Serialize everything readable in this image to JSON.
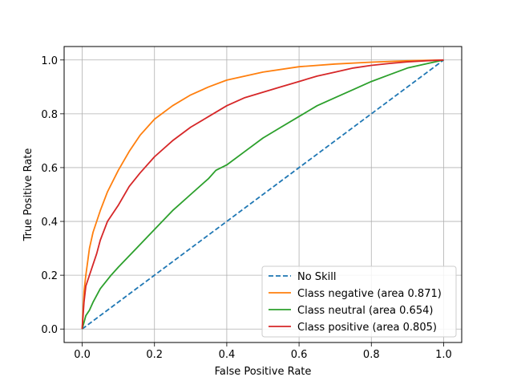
{
  "chart_data": {
    "type": "line",
    "xlabel": "False Positive Rate",
    "ylabel": "True Positive Rate",
    "xlim": [
      -0.05,
      1.05
    ],
    "ylim": [
      -0.05,
      1.05
    ],
    "xticks": [
      0.0,
      0.2,
      0.4,
      0.6,
      0.8,
      1.0
    ],
    "yticks": [
      0.0,
      0.2,
      0.4,
      0.6,
      0.8,
      1.0
    ],
    "xtick_labels": [
      "0.0",
      "0.2",
      "0.4",
      "0.6",
      "0.8",
      "1.0"
    ],
    "ytick_labels": [
      "0.0",
      "0.2",
      "0.4",
      "0.6",
      "0.8",
      "1.0"
    ],
    "grid": true,
    "legend_position": "lower-right",
    "series": [
      {
        "name": "No Skill",
        "color": "#1f77b4",
        "dashed": true,
        "x": [
          0.0,
          1.0
        ],
        "y": [
          0.0,
          1.0
        ]
      },
      {
        "name": "Class negative (area 0.871)",
        "color": "#ff7f0e",
        "dashed": false,
        "x": [
          0.0,
          0.005,
          0.01,
          0.02,
          0.03,
          0.05,
          0.07,
          0.1,
          0.13,
          0.16,
          0.2,
          0.25,
          0.3,
          0.35,
          0.4,
          0.5,
          0.6,
          0.7,
          0.8,
          0.9,
          1.0
        ],
        "y": [
          0.0,
          0.14,
          0.2,
          0.3,
          0.36,
          0.44,
          0.51,
          0.59,
          0.66,
          0.72,
          0.78,
          0.83,
          0.87,
          0.9,
          0.925,
          0.955,
          0.975,
          0.985,
          0.992,
          0.997,
          1.0
        ]
      },
      {
        "name": "Class neutral (area 0.654)",
        "color": "#2ca02c",
        "dashed": false,
        "x": [
          0.0,
          0.01,
          0.02,
          0.03,
          0.05,
          0.08,
          0.1,
          0.15,
          0.2,
          0.25,
          0.3,
          0.35,
          0.37,
          0.4,
          0.45,
          0.5,
          0.55,
          0.6,
          0.65,
          0.7,
          0.75,
          0.8,
          0.85,
          0.9,
          0.95,
          1.0
        ],
        "y": [
          0.0,
          0.05,
          0.07,
          0.1,
          0.15,
          0.2,
          0.23,
          0.3,
          0.37,
          0.44,
          0.5,
          0.56,
          0.59,
          0.61,
          0.66,
          0.71,
          0.75,
          0.79,
          0.83,
          0.86,
          0.89,
          0.92,
          0.945,
          0.97,
          0.985,
          1.0
        ]
      },
      {
        "name": "Class positive (area 0.805)",
        "color": "#d62728",
        "dashed": false,
        "x": [
          0.0,
          0.005,
          0.01,
          0.02,
          0.03,
          0.04,
          0.05,
          0.07,
          0.1,
          0.13,
          0.16,
          0.2,
          0.25,
          0.3,
          0.35,
          0.4,
          0.45,
          0.5,
          0.55,
          0.6,
          0.65,
          0.7,
          0.75,
          0.8,
          0.85,
          0.9,
          0.95,
          1.0
        ],
        "y": [
          0.0,
          0.1,
          0.16,
          0.2,
          0.24,
          0.28,
          0.33,
          0.4,
          0.46,
          0.53,
          0.58,
          0.64,
          0.7,
          0.75,
          0.79,
          0.83,
          0.86,
          0.88,
          0.9,
          0.92,
          0.94,
          0.955,
          0.97,
          0.98,
          0.987,
          0.993,
          0.997,
          1.0
        ]
      }
    ]
  }
}
